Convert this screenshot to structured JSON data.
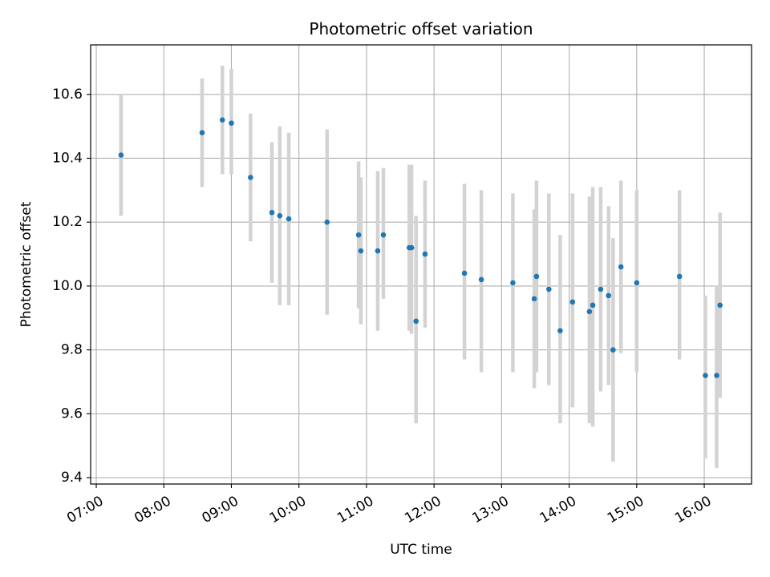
{
  "chart_data": {
    "type": "scatter",
    "title": "Photometric offset variation",
    "xlabel": "UTC time",
    "ylabel": "Photometric offset",
    "xlim": [
      "06:55",
      "16:42"
    ],
    "ylim": [
      9.38,
      10.755
    ],
    "x_ticks": [
      "07:00",
      "08:00",
      "09:00",
      "10:00",
      "11:00",
      "12:00",
      "13:00",
      "14:00",
      "15:00",
      "16:00"
    ],
    "y_ticks": [
      9.4,
      9.6,
      9.8,
      10.0,
      10.2,
      10.4,
      10.6
    ],
    "y_tick_labels": [
      "9.4",
      "9.6",
      "9.8",
      "10.0",
      "10.2",
      "10.4",
      "10.6"
    ],
    "grid": true,
    "marker_color": "#1f77b4",
    "errorbar_color": "#d3d3d3",
    "points": [
      {
        "x": "07:22",
        "y": 10.41,
        "lo": 10.22,
        "hi": 10.6
      },
      {
        "x": "08:34",
        "y": 10.48,
        "lo": 10.31,
        "hi": 10.65
      },
      {
        "x": "08:52",
        "y": 10.52,
        "lo": 10.35,
        "hi": 10.69
      },
      {
        "x": "09:00",
        "y": 10.51,
        "lo": 10.35,
        "hi": 10.68
      },
      {
        "x": "09:17",
        "y": 10.34,
        "lo": 10.14,
        "hi": 10.54
      },
      {
        "x": "09:36",
        "y": 10.23,
        "lo": 10.01,
        "hi": 10.45
      },
      {
        "x": "09:43",
        "y": 10.22,
        "lo": 9.94,
        "hi": 10.5
      },
      {
        "x": "09:51",
        "y": 10.21,
        "lo": 9.94,
        "hi": 10.48
      },
      {
        "x": "10:25",
        "y": 10.2,
        "lo": 9.91,
        "hi": 10.49
      },
      {
        "x": "10:53",
        "y": 10.16,
        "lo": 9.93,
        "hi": 10.39
      },
      {
        "x": "10:55",
        "y": 10.11,
        "lo": 9.88,
        "hi": 10.34
      },
      {
        "x": "11:10",
        "y": 10.11,
        "lo": 9.86,
        "hi": 10.36
      },
      {
        "x": "11:15",
        "y": 10.16,
        "lo": 9.96,
        "hi": 10.37
      },
      {
        "x": "11:38",
        "y": 10.12,
        "lo": 9.86,
        "hi": 10.38
      },
      {
        "x": "11:40",
        "y": 10.12,
        "lo": 9.85,
        "hi": 10.38
      },
      {
        "x": "11:44",
        "y": 9.89,
        "lo": 9.57,
        "hi": 10.22
      },
      {
        "x": "11:52",
        "y": 10.1,
        "lo": 9.87,
        "hi": 10.33
      },
      {
        "x": "12:27",
        "y": 10.04,
        "lo": 9.77,
        "hi": 10.32
      },
      {
        "x": "12:42",
        "y": 10.02,
        "lo": 9.73,
        "hi": 10.3
      },
      {
        "x": "13:10",
        "y": 10.01,
        "lo": 9.73,
        "hi": 10.29
      },
      {
        "x": "13:29",
        "y": 9.96,
        "lo": 9.68,
        "hi": 10.24
      },
      {
        "x": "13:31",
        "y": 10.03,
        "lo": 9.73,
        "hi": 10.33
      },
      {
        "x": "13:42",
        "y": 9.99,
        "lo": 9.69,
        "hi": 10.29
      },
      {
        "x": "13:52",
        "y": 9.86,
        "lo": 9.57,
        "hi": 10.16
      },
      {
        "x": "14:03",
        "y": 9.95,
        "lo": 9.62,
        "hi": 10.29
      },
      {
        "x": "14:18",
        "y": 9.92,
        "lo": 9.57,
        "hi": 10.28
      },
      {
        "x": "14:21",
        "y": 9.94,
        "lo": 9.56,
        "hi": 10.31
      },
      {
        "x": "14:28",
        "y": 9.99,
        "lo": 9.67,
        "hi": 10.31
      },
      {
        "x": "14:35",
        "y": 9.97,
        "lo": 9.69,
        "hi": 10.25
      },
      {
        "x": "14:39",
        "y": 9.8,
        "lo": 9.45,
        "hi": 10.15
      },
      {
        "x": "14:46",
        "y": 10.06,
        "lo": 9.79,
        "hi": 10.33
      },
      {
        "x": "15:00",
        "y": 10.01,
        "lo": 9.73,
        "hi": 10.3
      },
      {
        "x": "15:38",
        "y": 10.03,
        "lo": 9.77,
        "hi": 10.3
      },
      {
        "x": "16:01",
        "y": 9.72,
        "lo": 9.46,
        "hi": 9.97
      },
      {
        "x": "16:11",
        "y": 9.72,
        "lo": 9.43,
        "hi": 10.0
      },
      {
        "x": "16:14",
        "y": 9.94,
        "lo": 9.65,
        "hi": 10.23
      }
    ]
  }
}
